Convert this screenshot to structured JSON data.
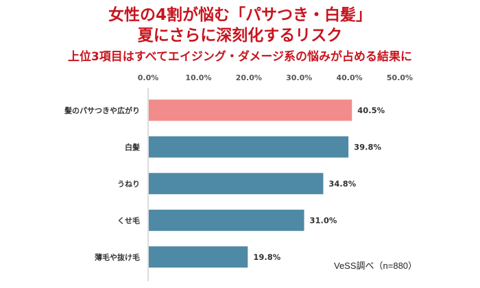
{
  "title_line1": "女性の4割が悩む「パサつき・白髪」",
  "title_line2": "夏にさらに深刻化するリスク",
  "subtitle": "上位3項目はすべてエイジング・ダメージ系の悩みが占める結果に",
  "source_note": "VeSS調べ（n=880）",
  "chart_data": {
    "type": "bar",
    "orientation": "horizontal",
    "categories": [
      "髪のパサつきや広がり",
      "白髪",
      "うねり",
      "くせ毛",
      "薄毛や抜け毛"
    ],
    "values": [
      40.5,
      39.8,
      34.8,
      31.0,
      19.8
    ],
    "value_labels": [
      "40.5%",
      "39.8%",
      "34.8%",
      "31.0%",
      "19.8%"
    ],
    "xlim": [
      0,
      50
    ],
    "ticks": [
      0,
      10,
      20,
      30,
      40,
      50
    ],
    "tick_labels": [
      "0.0%",
      "10.0%",
      "20.0%",
      "30.0%",
      "40.0%",
      "50.0%"
    ],
    "axis_position": "top",
    "grid": false,
    "highlight_color": "#f28b8b",
    "bar_color": "#4e8aa5",
    "highlight_index": 0
  }
}
